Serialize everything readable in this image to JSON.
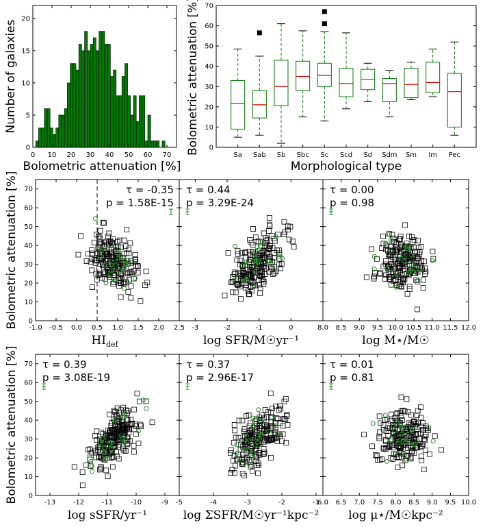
{
  "chart_data": [
    {
      "id": "hist",
      "type": "bar",
      "ylabel": "Number of galaxies",
      "xlabel": "Bolometric attenuation [%]",
      "xlim": [
        0,
        75
      ],
      "ylim": [
        0,
        22
      ],
      "x_ticks": [
        0,
        10,
        20,
        30,
        40,
        50,
        60,
        70
      ],
      "y_ticks": [
        0,
        5,
        10,
        15,
        20
      ],
      "bin_width": 1.5,
      "bin_starts": [
        1.5,
        3,
        4.5,
        6,
        7.5,
        9,
        10.5,
        12,
        13.5,
        15,
        16.5,
        18,
        19.5,
        21,
        22.5,
        24,
        25.5,
        27,
        28.5,
        30,
        31.5,
        33,
        34.5,
        36,
        37.5,
        39,
        40.5,
        42,
        43.5,
        45,
        46.5,
        48,
        49.5,
        51,
        52.5,
        54,
        55.5,
        57,
        58.5,
        60,
        61.5,
        63,
        64.5,
        66,
        67.5
      ],
      "values": [
        1,
        3,
        3,
        6,
        6,
        3,
        2,
        3,
        5,
        5,
        6,
        10,
        13,
        13,
        12,
        16,
        15,
        18,
        15,
        16,
        17,
        15,
        18,
        18,
        16,
        16,
        11,
        12,
        8,
        8,
        11,
        13,
        8,
        5,
        8,
        4,
        8,
        8,
        1,
        5,
        1,
        1,
        1,
        0,
        1
      ],
      "color": "#007a00"
    },
    {
      "id": "boxplot",
      "type": "box",
      "xlabel": "Morphological type",
      "ylabel": "Bolometric attenuation [%]",
      "ylim": [
        0,
        70
      ],
      "y_ticks": [
        0,
        10,
        20,
        30,
        40,
        50,
        60,
        70
      ],
      "categories": [
        "Sa",
        "Sab",
        "Sb",
        "Sbc",
        "Sc",
        "Scd",
        "Sd",
        "Sdm",
        "Sm",
        "Im",
        "Pec"
      ],
      "boxes": [
        {
          "whisker_low": 5,
          "q1": 9,
          "median": 21.5,
          "q3": 33,
          "whisker_high": 48.5,
          "outliers": []
        },
        {
          "whisker_low": 6,
          "q1": 14.5,
          "median": 21,
          "q3": 28,
          "whisker_high": 45,
          "outliers": [
            56.5
          ]
        },
        {
          "whisker_low": 2,
          "q1": 20.5,
          "median": 30,
          "q3": 43,
          "whisker_high": 61,
          "outliers": []
        },
        {
          "whisker_low": 15,
          "q1": 28,
          "median": 35,
          "q3": 42.5,
          "whisker_high": 57.5,
          "outliers": []
        },
        {
          "whisker_low": 13,
          "q1": 30,
          "median": 35.5,
          "q3": 41.5,
          "whisker_high": 57,
          "outliers": [
            61,
            67
          ]
        },
        {
          "whisker_low": 19,
          "q1": 25,
          "median": 31.5,
          "q3": 39,
          "whisker_high": 56.5,
          "outliers": []
        },
        {
          "whisker_low": 22.5,
          "q1": 28.5,
          "median": 33.5,
          "q3": 38.5,
          "whisker_high": 41.5,
          "outliers": []
        },
        {
          "whisker_low": 15,
          "q1": 22.5,
          "median": 31.5,
          "q3": 34,
          "whisker_high": 38,
          "outliers": []
        },
        {
          "whisker_low": 23.5,
          "q1": 24.5,
          "median": 31,
          "q3": 39,
          "whisker_high": 42,
          "outliers": []
        },
        {
          "whisker_low": 25,
          "q1": 27,
          "median": 32,
          "q3": 42,
          "whisker_high": 48.5,
          "outliers": []
        },
        {
          "whisker_low": 6,
          "q1": 10,
          "median": 27.5,
          "q3": 36.5,
          "whisker_high": 52,
          "outliers": []
        }
      ],
      "box_color": "#007a00",
      "median_color": "#e00000",
      "outlier_color": "#000000"
    },
    {
      "id": "hidef",
      "type": "scatter",
      "xlabel_main": "HI",
      "xlabel_sub": "def",
      "ylabel": "Bolometric attenuation [%]",
      "xlim": [
        -1.0,
        2.5
      ],
      "ylim": [
        0,
        75
      ],
      "x_ticks": [
        "-1.0",
        "-0.5",
        "0.0",
        "0.5",
        "1.0",
        "1.5",
        "2.0",
        "2.5"
      ],
      "y_ticks": [
        0,
        10,
        20,
        30,
        40,
        50,
        60,
        70
      ],
      "tau": "τ = -0.35",
      "pval": "p = 1.58E-15",
      "stat_side": "right",
      "errbar_side": "right",
      "vline": 0.5,
      "seed": 11,
      "n_black": 200,
      "n_green": 26
    },
    {
      "id": "sfr",
      "type": "scatter",
      "xlabel": "log SFR/M☉yr⁻¹",
      "xlim": [
        -3.5,
        1.0
      ],
      "ylim": [
        0,
        75
      ],
      "x_ticks": [
        "-3",
        "-2",
        "-1",
        "0"
      ],
      "tau": "τ = 0.44",
      "pval": "p = 3.29E-24",
      "stat_side": "left",
      "errbar_side": "left",
      "seed": 23,
      "n_black": 200,
      "n_green": 26
    },
    {
      "id": "mstar",
      "type": "scatter",
      "xlabel": "log M⋆/M☉",
      "xlim": [
        8.0,
        12.0
      ],
      "ylim": [
        0,
        75
      ],
      "x_ticks": [
        "8.0",
        "8.5",
        "9.0",
        "9.5",
        "10.0",
        "10.5",
        "11.0",
        "11.5",
        "12.0"
      ],
      "tau": "τ = 0.00",
      "pval": "p = 0.98",
      "stat_side": "left",
      "errbar_side": "left",
      "seed": 37,
      "n_black": 200,
      "n_green": 26
    },
    {
      "id": "ssfr",
      "type": "scatter",
      "xlabel": "log sSFR/yr⁻¹",
      "ylabel": "Bolometric attenuation [%]",
      "xlim": [
        -13.5,
        -8.5
      ],
      "ylim": [
        0,
        75
      ],
      "x_ticks": [
        "-13",
        "-12",
        "-11",
        "-10",
        "-9"
      ],
      "y_ticks": [
        0,
        10,
        20,
        30,
        40,
        50,
        60,
        70
      ],
      "tau": "τ = 0.39",
      "pval": "p = 3.08E-19",
      "stat_side": "left",
      "errbar_side": "left",
      "seed": 41,
      "n_black": 200,
      "n_green": 26
    },
    {
      "id": "sigsfr",
      "type": "scatter",
      "xlabel": "log ΣSFR/M☉yr⁻¹kpc⁻²",
      "xlim": [
        -5.0,
        -0.8
      ],
      "ylim": [
        0,
        75
      ],
      "x_ticks": [
        "-5",
        "-4",
        "-3",
        "-2",
        "-1"
      ],
      "tau": "τ = 0.37",
      "pval": "p = 2.96E-17",
      "stat_side": "left",
      "errbar_side": "left",
      "seed": 53,
      "n_black": 200,
      "n_green": 26
    },
    {
      "id": "mustar",
      "type": "scatter",
      "xlabel": "log μ⋆/M☉kpc⁻²",
      "xlim": [
        6.0,
        10.0
      ],
      "ylim": [
        0,
        75
      ],
      "x_ticks": [
        "6.0",
        "6.5",
        "7.0",
        "7.5",
        "8.0",
        "8.5",
        "9.0",
        "9.5",
        "10.0"
      ],
      "tau": "τ = 0.01",
      "pval": "p = 0.81",
      "stat_side": "left",
      "errbar_side": "left",
      "seed": 67,
      "n_black": 200,
      "n_green": 26
    }
  ]
}
